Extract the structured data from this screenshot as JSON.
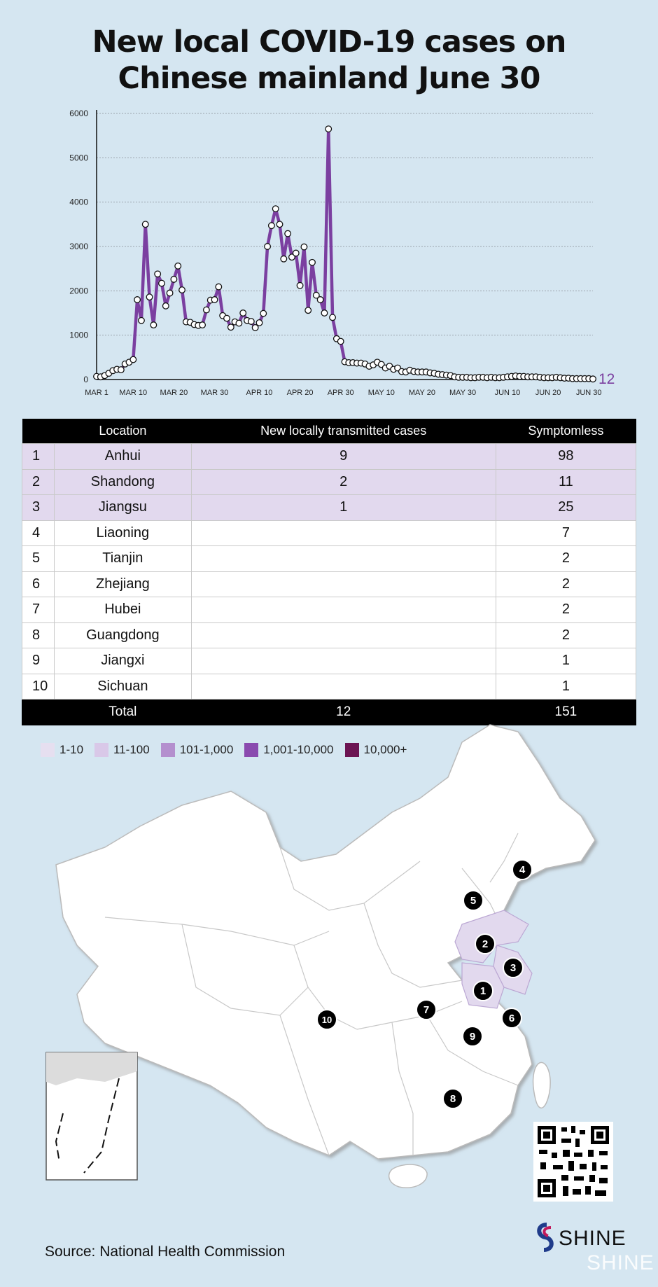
{
  "title_line1": "New local COVID-19 cases on",
  "title_line2": "Chinese mainland  June 30",
  "chart_data": {
    "type": "line",
    "title": "New local COVID-19 cases on Chinese mainland  June 30",
    "ylim": [
      0,
      6000
    ],
    "yticks": [
      0,
      1000,
      2000,
      3000,
      4000,
      5000,
      6000
    ],
    "xticks": [
      "MAR 1",
      "MAR 10",
      "MAR 20",
      "MAR 30",
      "APR 10",
      "APR 20",
      "APR 30",
      "MAY 10",
      "MAY 20",
      "MAY 30",
      "JUN 10",
      "JUN 20",
      "JUN 30"
    ],
    "xtick_days": [
      0,
      9,
      19,
      29,
      40,
      50,
      60,
      70,
      80,
      90,
      101,
      111,
      121
    ],
    "last_value_label": "12",
    "line_color": "#7b3fa0",
    "grid": true,
    "values": [
      70,
      60,
      90,
      140,
      200,
      230,
      220,
      350,
      390,
      450,
      1800,
      1330,
      3500,
      1860,
      1230,
      2380,
      2170,
      1660,
      1950,
      2260,
      2560,
      2020,
      1300,
      1290,
      1240,
      1220,
      1230,
      1570,
      1790,
      1800,
      2090,
      1440,
      1380,
      1180,
      1300,
      1270,
      1500,
      1330,
      1310,
      1170,
      1280,
      1490,
      3000,
      3470,
      3850,
      3500,
      2720,
      3290,
      2760,
      2850,
      2120,
      2990,
      1560,
      2640,
      1900,
      1800,
      1500,
      5650,
      1400,
      920,
      860,
      400,
      380,
      380,
      370,
      370,
      350,
      300,
      330,
      390,
      340,
      260,
      300,
      230,
      260,
      180,
      170,
      210,
      180,
      170,
      170,
      170,
      150,
      140,
      120,
      110,
      100,
      90,
      60,
      50,
      50,
      50,
      40,
      40,
      50,
      50,
      40,
      50,
      40,
      40,
      50,
      60,
      70,
      80,
      70,
      70,
      60,
      60,
      60,
      50,
      40,
      40,
      40,
      50,
      40,
      30,
      30,
      20,
      20,
      20,
      20,
      20,
      12
    ]
  },
  "table": {
    "headers": [
      "Location",
      "New locally transmitted cases",
      "Symptomless"
    ],
    "rows": [
      {
        "num": "1",
        "location": "Anhui",
        "cases": "9",
        "symptomless": "98"
      },
      {
        "num": "2",
        "location": "Shandong",
        "cases": "2",
        "symptomless": "11"
      },
      {
        "num": "3",
        "location": "Jiangsu",
        "cases": "1",
        "symptomless": "25"
      },
      {
        "num": "4",
        "location": "Liaoning",
        "cases": "",
        "symptomless": "7"
      },
      {
        "num": "5",
        "location": "Tianjin",
        "cases": "",
        "symptomless": "2"
      },
      {
        "num": "6",
        "location": "Zhejiang",
        "cases": "",
        "symptomless": "2"
      },
      {
        "num": "7",
        "location": "Hubei",
        "cases": "",
        "symptomless": "2"
      },
      {
        "num": "8",
        "location": "Guangdong",
        "cases": "",
        "symptomless": "2"
      },
      {
        "num": "9",
        "location": "Jiangxi",
        "cases": "",
        "symptomless": "1"
      },
      {
        "num": "10",
        "location": "Sichuan",
        "cases": "",
        "symptomless": "1"
      }
    ],
    "total": {
      "label": "Total",
      "cases": "12",
      "symptomless": "151"
    }
  },
  "legend": [
    {
      "label": "1-10",
      "color": "#e6dff0"
    },
    {
      "label": "11-100",
      "color": "#d9c8e8"
    },
    {
      "label": "101-1,000",
      "color": "#b48fce"
    },
    {
      "label": "1,001-10,000",
      "color": "#8a4aaf"
    },
    {
      "label": "10,000+",
      "color": "#6b1452"
    }
  ],
  "map_markers": [
    "1",
    "2",
    "3",
    "4",
    "5",
    "6",
    "7",
    "8",
    "9",
    "10"
  ],
  "source": "Source: National Health Commission",
  "logo": "SHINE"
}
